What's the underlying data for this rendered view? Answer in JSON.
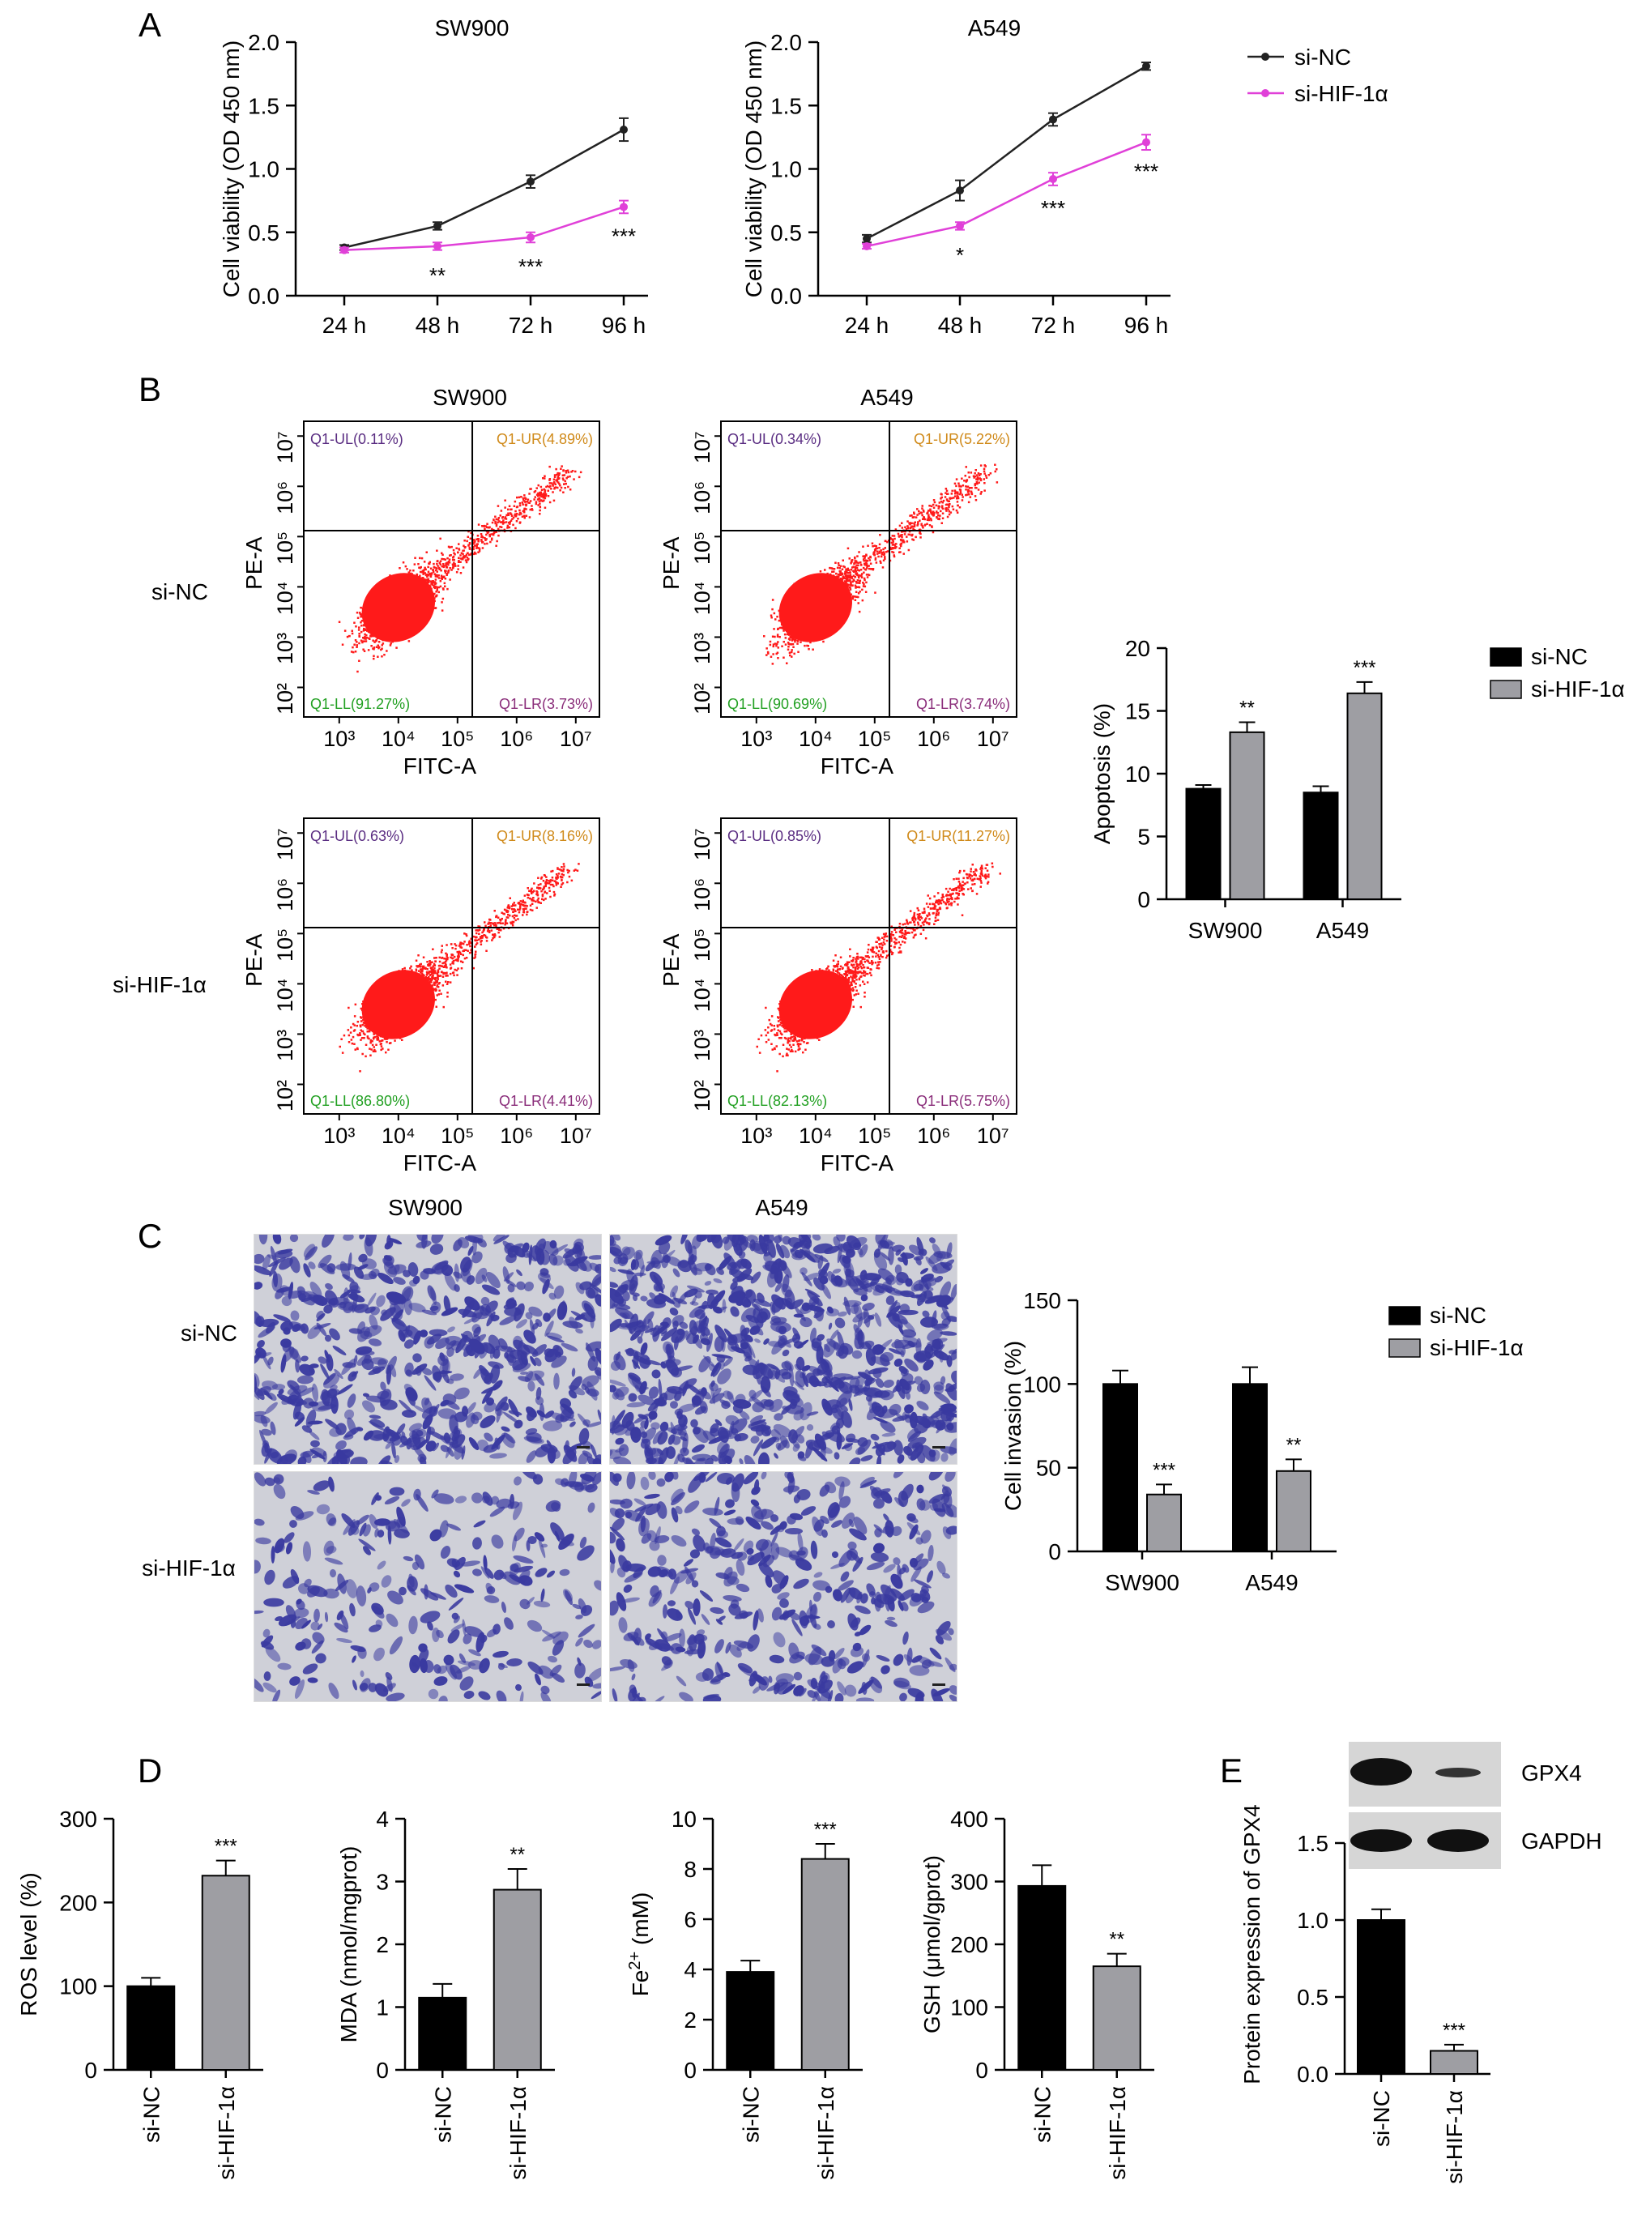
{
  "panels": {
    "A": {
      "letter": "A"
    },
    "B": {
      "letter": "B"
    },
    "C": {
      "letter": "C"
    },
    "D": {
      "letter": "D"
    },
    "E": {
      "letter": "E"
    }
  },
  "row_labels": {
    "si_nc": "si-NC",
    "si_hif": "si-HIF-1α"
  },
  "colors": {
    "si_nc": "#000000",
    "si_hif": "#9e9ea3",
    "line_si_nc": "#222222",
    "line_si_hif": "#e040d8",
    "flow_dots": "#ff1a1a",
    "stain": "#3a3aa0"
  },
  "chart_data": [
    {
      "id": "A1",
      "type": "line",
      "title": "SW900",
      "ylabel": "Cell viability (OD 450 nm)",
      "x": [
        "24 h",
        "48 h",
        "72 h",
        "96 h"
      ],
      "ylim": [
        0,
        2.0
      ],
      "yticks": [
        "0.0",
        "0.5",
        "1.0",
        "1.5",
        "2.0"
      ],
      "series": [
        {
          "name": "si-NC",
          "values": [
            0.38,
            0.55,
            0.9,
            1.31
          ],
          "errors": [
            0.02,
            0.03,
            0.05,
            0.09
          ]
        },
        {
          "name": "si-HIF-1α",
          "values": [
            0.36,
            0.39,
            0.46,
            0.7
          ],
          "errors": [
            0.02,
            0.03,
            0.04,
            0.05
          ]
        }
      ],
      "annotations": [
        "",
        "**",
        "***",
        "***"
      ]
    },
    {
      "id": "A2",
      "type": "line",
      "title": "A549",
      "ylabel": "Cell viability (OD 450 nm)",
      "x": [
        "24 h",
        "48 h",
        "72 h",
        "96 h"
      ],
      "ylim": [
        0,
        2.0
      ],
      "yticks": [
        "0.0",
        "0.5",
        "1.0",
        "1.5",
        "2.0"
      ],
      "series": [
        {
          "name": "si-NC",
          "values": [
            0.45,
            0.83,
            1.39,
            1.81
          ],
          "errors": [
            0.03,
            0.08,
            0.05,
            0.03
          ]
        },
        {
          "name": "si-HIF-1α",
          "values": [
            0.39,
            0.55,
            0.92,
            1.21
          ],
          "errors": [
            0.02,
            0.03,
            0.05,
            0.06
          ]
        }
      ],
      "annotations": [
        "",
        "*",
        "***",
        "***"
      ],
      "legend": [
        "si-NC",
        "si-HIF-1α"
      ]
    },
    {
      "id": "B_flow",
      "type": "scatter",
      "titles": [
        "SW900",
        "A549"
      ],
      "xlabel": "FITC-A",
      "ylabel": "PE-A",
      "plots": [
        {
          "quadrants": [
            "Q1-UL(0.11%)",
            "Q1-UR(4.89%)",
            "Q1-LL(91.27%)",
            "Q1-LR(3.73%)"
          ]
        },
        {
          "quadrants": [
            "Q1-UL(0.34%)",
            "Q1-UR(5.22%)",
            "Q1-LL(90.69%)",
            "Q1-LR(3.74%)"
          ]
        },
        {
          "quadrants": [
            "Q1-UL(0.63%)",
            "Q1-UR(8.16%)",
            "Q1-LL(86.80%)",
            "Q1-LR(4.41%)"
          ]
        },
        {
          "quadrants": [
            "Q1-UL(0.85%)",
            "Q1-UR(11.27%)",
            "Q1-LL(82.13%)",
            "Q1-LR(5.75%)"
          ]
        }
      ]
    },
    {
      "id": "B_bar",
      "type": "bar",
      "ylabel": "Apoptosis (%)",
      "categories": [
        "SW900",
        "A549"
      ],
      "ylim": [
        0,
        20
      ],
      "yticks": [
        "0",
        "5",
        "10",
        "15",
        "20"
      ],
      "series": [
        {
          "name": "si-NC",
          "values": [
            8.8,
            8.5
          ],
          "errors": [
            0.3,
            0.5
          ]
        },
        {
          "name": "si-HIF-1α",
          "values": [
            13.3,
            16.4
          ],
          "errors": [
            0.8,
            0.9
          ]
        }
      ],
      "annotations": [
        "**",
        "***"
      ]
    },
    {
      "id": "C_bar",
      "type": "bar",
      "ylabel": "Cell invasion (%)",
      "categories": [
        "SW900",
        "A549"
      ],
      "ylim": [
        0,
        150
      ],
      "yticks": [
        "0",
        "50",
        "100",
        "150"
      ],
      "series": [
        {
          "name": "si-NC",
          "values": [
            100,
            100
          ],
          "errors": [
            8,
            10
          ]
        },
        {
          "name": "si-HIF-1α",
          "values": [
            34,
            48
          ],
          "errors": [
            6,
            7
          ]
        }
      ],
      "annotations": [
        "***",
        "**"
      ]
    },
    {
      "id": "D1",
      "type": "bar",
      "ylabel": "ROS level (%)",
      "categories": [
        "si-NC",
        "si-HIF-1α"
      ],
      "ylim": [
        0,
        300
      ],
      "yticks": [
        "0",
        "100",
        "200",
        "300"
      ],
      "values": [
        100,
        232
      ],
      "errors": [
        10,
        18
      ],
      "annotations": [
        "",
        "***"
      ]
    },
    {
      "id": "D2",
      "type": "bar",
      "ylabel": "MDA (nmol/mgprot)",
      "categories": [
        "si-NC",
        "si-HIF-1α"
      ],
      "ylim": [
        0,
        4
      ],
      "yticks": [
        "0",
        "1",
        "2",
        "3",
        "4"
      ],
      "values": [
        1.15,
        2.87
      ],
      "errors": [
        0.22,
        0.33
      ],
      "annotations": [
        "",
        "**"
      ]
    },
    {
      "id": "D3",
      "type": "bar",
      "ylabel": "Fe2+ (mM)",
      "categories": [
        "si-NC",
        "si-HIF-1α"
      ],
      "ylim": [
        0,
        10
      ],
      "yticks": [
        "0",
        "2",
        "4",
        "6",
        "8",
        "10"
      ],
      "values": [
        3.9,
        8.4
      ],
      "errors": [
        0.45,
        0.6
      ],
      "annotations": [
        "",
        "***"
      ]
    },
    {
      "id": "D4",
      "type": "bar",
      "ylabel": "GSH (μmol/gprot)",
      "categories": [
        "si-NC",
        "si-HIF-1α"
      ],
      "ylim": [
        0,
        400
      ],
      "yticks": [
        "0",
        "100",
        "200",
        "300",
        "400"
      ],
      "values": [
        293,
        165
      ],
      "errors": [
        33,
        20
      ],
      "annotations": [
        "",
        "**"
      ]
    },
    {
      "id": "E",
      "type": "bar",
      "ylabel": "Protein expression of GPX4",
      "categories": [
        "si-NC",
        "si-HIF-1α"
      ],
      "ylim": [
        0,
        1.5
      ],
      "yticks": [
        "0.0",
        "0.5",
        "1.0",
        "1.5"
      ],
      "values": [
        1.0,
        0.15
      ],
      "errors": [
        0.07,
        0.04
      ],
      "annotations": [
        "",
        "***"
      ],
      "blot_labels": [
        "GPX4",
        "GAPDH"
      ]
    }
  ],
  "micrographs": {
    "titles": [
      "SW900",
      "A549"
    ]
  }
}
